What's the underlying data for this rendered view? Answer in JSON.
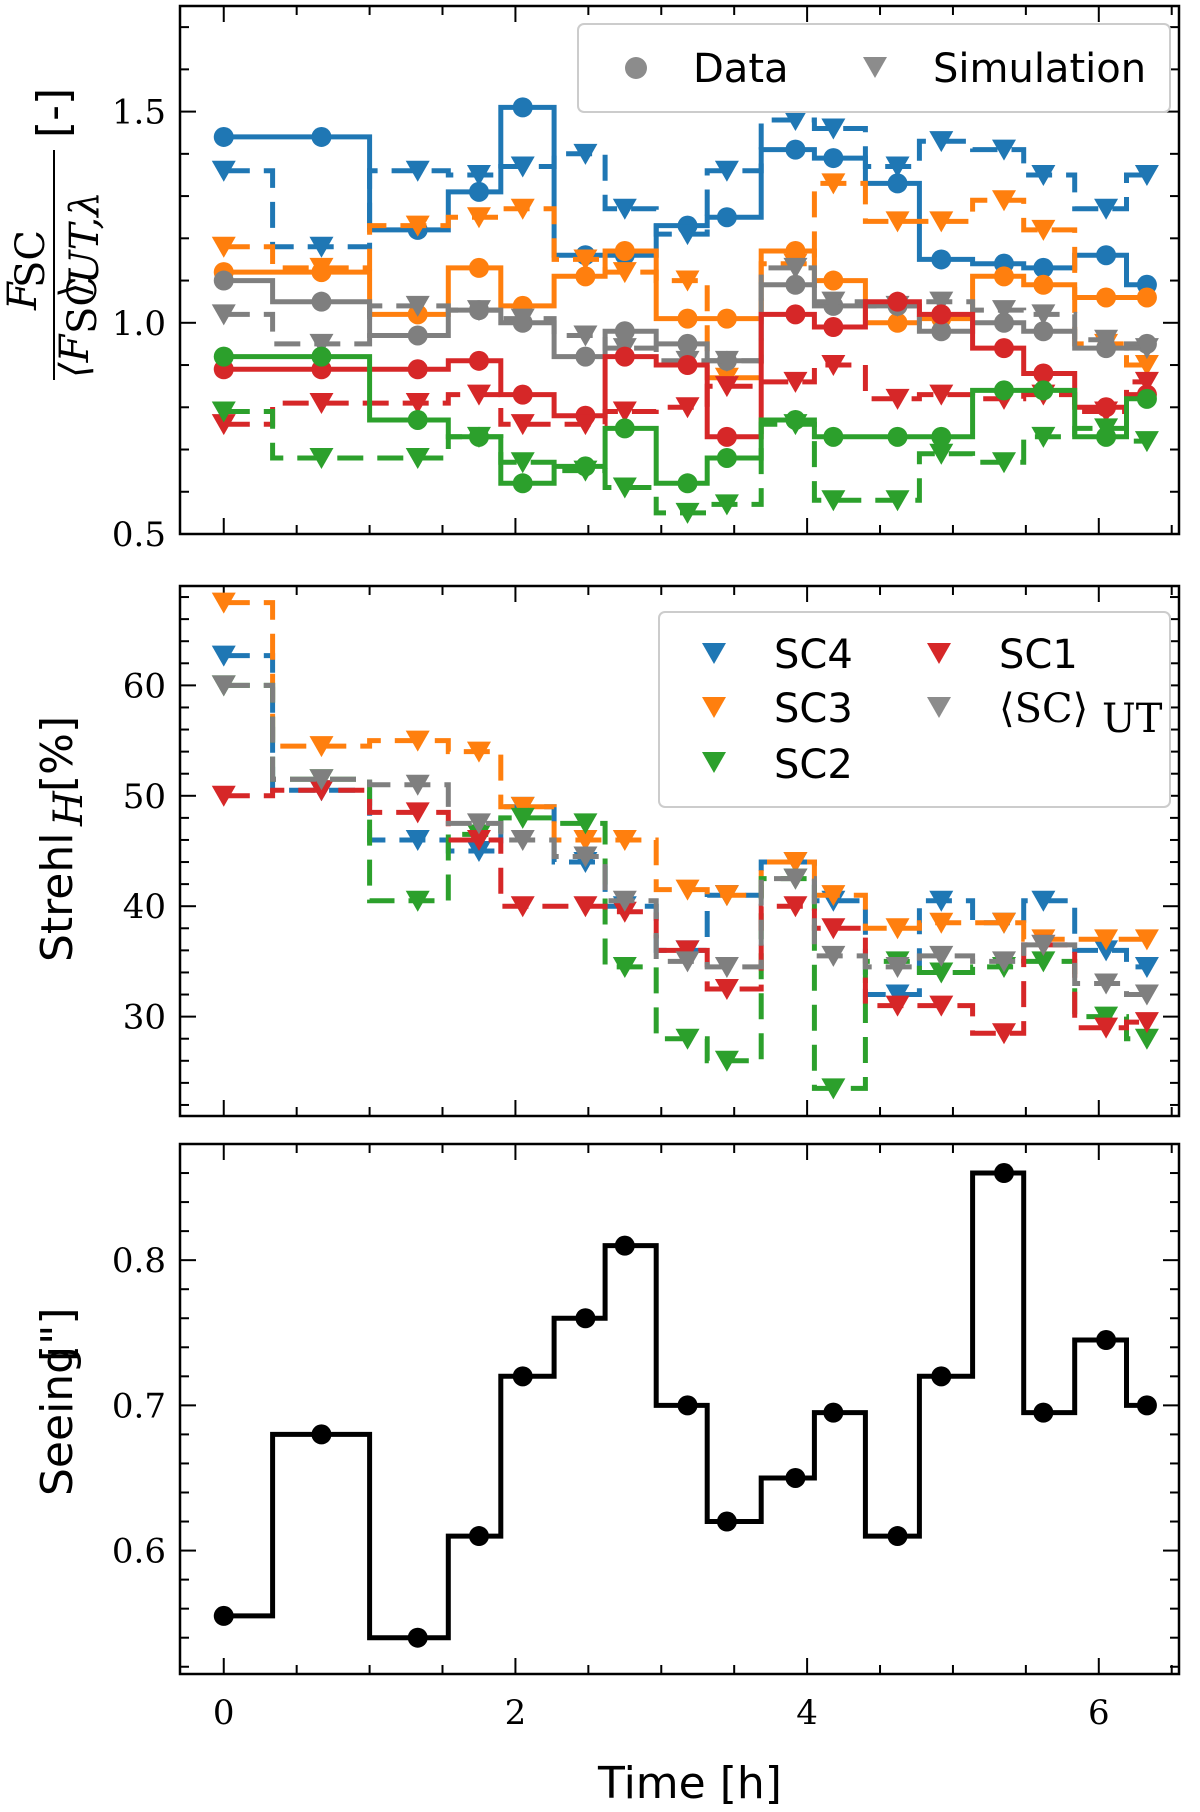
{
  "chart_data": [
    {
      "type": "line",
      "panel": "top",
      "ylabel": {
        "numerator": "F",
        "numerator_sub": "SC",
        "denominator_open": "⟨F",
        "denominator_sub": "SC",
        "denominator_close": "⟩",
        "denominator_sub2": "UT,λ",
        "unit": "[-]"
      },
      "ylim": [
        0.5,
        1.75
      ],
      "xlim": [
        -0.3,
        6.55
      ],
      "yticks": [
        0.5,
        1.0,
        1.5
      ],
      "ytick_labels": [
        "0.5",
        "1.0",
        "1.5"
      ],
      "legend": {
        "position": "top-right",
        "entries": [
          {
            "marker": "circle",
            "label": "Data"
          },
          {
            "marker": "triangle",
            "label": "Simulation"
          }
        ]
      },
      "series": [
        {
          "color": "#1f77b4",
          "style": "data",
          "x": [
            0,
            0.67,
            1.33,
            1.75,
            2.05,
            2.48,
            2.75,
            3.18,
            3.45,
            3.92,
            4.18,
            4.62,
            4.92,
            5.35,
            5.62,
            6.05,
            6.33
          ],
          "y": [
            1.44,
            1.44,
            1.22,
            1.31,
            1.51,
            1.16,
            1.16,
            1.23,
            1.25,
            1.41,
            1.39,
            1.33,
            1.15,
            1.14,
            1.13,
            1.16,
            1.09
          ]
        },
        {
          "color": "#1f77b4",
          "style": "sim",
          "x": [
            0,
            0.67,
            1.33,
            1.75,
            2.05,
            2.48,
            2.75,
            3.18,
            3.45,
            3.92,
            4.18,
            4.62,
            4.92,
            5.35,
            5.62,
            6.05,
            6.33
          ],
          "y": [
            1.36,
            1.18,
            1.36,
            1.35,
            1.37,
            1.4,
            1.27,
            1.21,
            1.36,
            1.48,
            1.46,
            1.37,
            1.43,
            1.41,
            1.35,
            1.27,
            1.35
          ]
        },
        {
          "color": "#ff7f0e",
          "style": "data",
          "x": [
            0,
            0.67,
            1.33,
            1.75,
            2.05,
            2.48,
            2.75,
            3.18,
            3.45,
            3.92,
            4.18,
            4.62,
            4.92,
            5.35,
            5.62,
            6.05,
            6.33
          ],
          "y": [
            1.12,
            1.12,
            1.02,
            1.13,
            1.04,
            1.11,
            1.17,
            1.01,
            1.01,
            1.17,
            1.1,
            1.0,
            1.01,
            1.11,
            1.09,
            1.06,
            1.06
          ]
        },
        {
          "color": "#ff7f0e",
          "style": "sim",
          "x": [
            0,
            0.67,
            1.33,
            1.75,
            2.05,
            2.48,
            2.75,
            3.18,
            3.45,
            3.92,
            4.18,
            4.62,
            4.92,
            5.35,
            5.62,
            6.05,
            6.33
          ],
          "y": [
            1.18,
            1.13,
            1.23,
            1.25,
            1.27,
            1.15,
            1.12,
            1.1,
            0.87,
            1.14,
            1.33,
            1.24,
            1.24,
            1.29,
            1.22,
            0.95,
            0.9
          ]
        },
        {
          "color": "#7f7f7f",
          "style": "data",
          "x": [
            0,
            0.67,
            1.33,
            1.75,
            2.05,
            2.48,
            2.75,
            3.18,
            3.45,
            3.92,
            4.18,
            4.62,
            4.92,
            5.35,
            5.62,
            6.05,
            6.33
          ],
          "y": [
            1.1,
            1.05,
            0.97,
            1.03,
            1.0,
            0.92,
            0.98,
            0.95,
            0.91,
            1.09,
            1.04,
            1.04,
            0.98,
            1.0,
            0.98,
            0.94,
            0.95
          ]
        },
        {
          "color": "#7f7f7f",
          "style": "sim",
          "x": [
            0,
            0.67,
            1.33,
            1.75,
            2.05,
            2.48,
            2.75,
            3.18,
            3.45,
            3.92,
            4.18,
            4.62,
            4.92,
            5.35,
            5.62,
            6.05,
            6.33
          ],
          "y": [
            1.02,
            0.95,
            1.04,
            1.03,
            1.01,
            0.97,
            0.94,
            0.91,
            0.91,
            1.13,
            1.05,
            1.04,
            1.05,
            1.03,
            1.02,
            0.96,
            0.94
          ]
        },
        {
          "color": "#d62728",
          "style": "data",
          "x": [
            0,
            0.67,
            1.33,
            1.75,
            2.05,
            2.48,
            2.75,
            3.18,
            3.45,
            3.92,
            4.18,
            4.62,
            4.92,
            5.35,
            5.62,
            6.05,
            6.33
          ],
          "y": [
            0.89,
            0.89,
            0.89,
            0.91,
            0.83,
            0.78,
            0.92,
            0.9,
            0.73,
            1.02,
            0.99,
            1.05,
            1.02,
            0.94,
            0.88,
            0.8,
            0.83
          ]
        },
        {
          "color": "#d62728",
          "style": "sim",
          "x": [
            0,
            0.67,
            1.33,
            1.75,
            2.05,
            2.48,
            2.75,
            3.18,
            3.45,
            3.92,
            4.18,
            4.62,
            4.92,
            5.35,
            5.62,
            6.05,
            6.33
          ],
          "y": [
            0.76,
            0.81,
            0.81,
            0.83,
            0.76,
            0.76,
            0.79,
            0.8,
            0.85,
            0.86,
            0.9,
            0.82,
            0.83,
            0.82,
            0.83,
            0.79,
            0.86
          ]
        },
        {
          "color": "#2ca02c",
          "style": "data",
          "x": [
            0,
            0.67,
            1.33,
            1.75,
            2.05,
            2.48,
            2.75,
            3.18,
            3.45,
            3.92,
            4.18,
            4.62,
            4.92,
            5.35,
            5.62,
            6.05,
            6.33
          ],
          "y": [
            0.92,
            0.92,
            0.77,
            0.73,
            0.62,
            0.66,
            0.75,
            0.62,
            0.68,
            0.77,
            0.73,
            0.73,
            0.73,
            0.84,
            0.84,
            0.73,
            0.82
          ]
        },
        {
          "color": "#2ca02c",
          "style": "sim",
          "x": [
            0,
            0.67,
            1.33,
            1.75,
            2.05,
            2.48,
            2.75,
            3.18,
            3.45,
            3.92,
            4.18,
            4.62,
            4.92,
            5.35,
            5.62,
            6.05,
            6.33
          ],
          "y": [
            0.79,
            0.68,
            0.68,
            0.73,
            0.67,
            0.65,
            0.61,
            0.55,
            0.57,
            0.76,
            0.58,
            0.58,
            0.69,
            0.67,
            0.73,
            0.75,
            0.72
          ]
        }
      ]
    },
    {
      "type": "line",
      "panel": "middle",
      "ylabel": {
        "text": "Strehl",
        "sub": "H",
        "unit": "[%]"
      },
      "ylim": [
        21,
        69
      ],
      "xlim": [
        -0.3,
        6.55
      ],
      "yticks": [
        30,
        40,
        50,
        60
      ],
      "ytick_labels": [
        "30",
        "40",
        "50",
        "60"
      ],
      "legend": {
        "position": "top-right",
        "entries": [
          {
            "color": "#1f77b4",
            "label": "SC4"
          },
          {
            "color": "#ff7f0e",
            "label": "SC3"
          },
          {
            "color": "#2ca02c",
            "label": "SC2"
          },
          {
            "color": "#d62728",
            "label": "SC1"
          },
          {
            "color": "#7f7f7f",
            "label": "⟨SC⟩",
            "sub": "UT"
          }
        ]
      },
      "series": [
        {
          "name": "SC4",
          "color": "#1f77b4",
          "x": [
            0,
            0.67,
            1.33,
            1.75,
            2.05,
            2.48,
            2.75,
            3.18,
            3.45,
            3.92,
            4.18,
            4.62,
            4.92,
            5.35,
            5.62,
            6.05,
            6.33
          ],
          "y": [
            62.7,
            50.5,
            46.0,
            45.0,
            49.0,
            44.0,
            40.0,
            36.0,
            41.0,
            44.0,
            40.5,
            32.0,
            40.5,
            38.5,
            40.5,
            36.0,
            34.5
          ]
        },
        {
          "name": "SC3",
          "color": "#ff7f0e",
          "x": [
            0,
            0.67,
            1.33,
            1.75,
            2.05,
            2.48,
            2.75,
            3.18,
            3.45,
            3.92,
            4.18,
            4.62,
            4.92,
            5.35,
            5.62,
            6.05,
            6.33
          ],
          "y": [
            67.5,
            54.5,
            55.0,
            54.0,
            49.0,
            46.0,
            46.0,
            41.5,
            41.0,
            44.0,
            41.0,
            38.0,
            38.5,
            38.5,
            37.0,
            37.0,
            37.0
          ]
        },
        {
          "name": "SC2",
          "color": "#2ca02c",
          "x": [
            0,
            0.67,
            1.33,
            1.75,
            2.05,
            2.48,
            2.75,
            3.18,
            3.45,
            3.92,
            4.18,
            4.62,
            4.92,
            5.35,
            5.62,
            6.05,
            6.33
          ],
          "y": [
            60.0,
            51.5,
            40.5,
            46.5,
            48.0,
            47.5,
            34.5,
            28.0,
            26.0,
            42.5,
            23.5,
            35.0,
            34.0,
            34.5,
            35.0,
            30.0,
            28.0
          ]
        },
        {
          "name": "SC1",
          "color": "#d62728",
          "x": [
            0,
            0.67,
            1.33,
            1.75,
            2.05,
            2.48,
            2.75,
            3.18,
            3.45,
            3.92,
            4.18,
            4.62,
            4.92,
            5.35,
            5.62,
            6.05,
            6.33
          ],
          "y": [
            50.0,
            50.5,
            48.5,
            46.0,
            40.0,
            40.0,
            39.5,
            36.0,
            32.5,
            40.0,
            38.0,
            31.0,
            31.0,
            28.5,
            36.5,
            29.0,
            29.5
          ]
        },
        {
          "name": "⟨SC⟩UT",
          "color": "#7f7f7f",
          "x": [
            0,
            0.67,
            1.33,
            1.75,
            2.05,
            2.48,
            2.75,
            3.18,
            3.45,
            3.92,
            4.18,
            4.62,
            4.92,
            5.35,
            5.62,
            6.05,
            6.33
          ],
          "y": [
            60.0,
            51.5,
            51.0,
            47.5,
            46.0,
            44.5,
            40.5,
            35.0,
            34.5,
            42.5,
            35.5,
            34.5,
            35.5,
            35.0,
            36.5,
            33.0,
            32.0
          ]
        }
      ]
    },
    {
      "type": "line",
      "panel": "bottom",
      "xlabel": "Time [h]",
      "ylabel": {
        "text": "Seeing",
        "unit": "[\"]"
      },
      "ylim": [
        0.515,
        0.88
      ],
      "xlim": [
        -0.3,
        6.55
      ],
      "xticks": [
        0,
        2,
        4,
        6
      ],
      "xtick_labels": [
        "0",
        "2",
        "4",
        "6"
      ],
      "yticks": [
        0.6,
        0.7,
        0.8
      ],
      "ytick_labels": [
        "0.6",
        "0.7",
        "0.8"
      ],
      "series": [
        {
          "color": "#000000",
          "x": [
            0,
            0.67,
            1.33,
            1.75,
            2.05,
            2.48,
            2.75,
            3.18,
            3.45,
            3.92,
            4.18,
            4.62,
            4.92,
            5.35,
            5.62,
            6.05,
            6.33
          ],
          "y": [
            0.555,
            0.68,
            0.54,
            0.61,
            0.72,
            0.76,
            0.81,
            0.7,
            0.62,
            0.65,
            0.695,
            0.61,
            0.72,
            0.86,
            0.695,
            0.745,
            0.7
          ]
        }
      ]
    }
  ]
}
